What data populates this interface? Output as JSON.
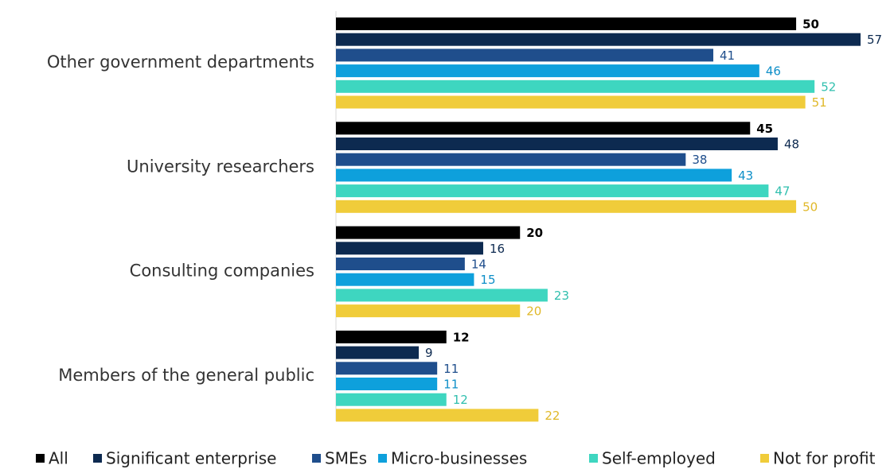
{
  "chart_data": {
    "type": "bar",
    "orientation": "horizontal",
    "categories": [
      "Other government departments",
      "University researchers",
      "Consulting companies",
      "Members of the general public"
    ],
    "series": [
      {
        "name": "All",
        "color": "#000000",
        "values": [
          50,
          45,
          20,
          12
        ]
      },
      {
        "name": "Significant enterprise",
        "color": "#0d2a50",
        "values": [
          57,
          48,
          16,
          9
        ]
      },
      {
        "name": "SMEs",
        "color": "#1f4e8c",
        "values": [
          41,
          38,
          14,
          11
        ]
      },
      {
        "name": "Micro-businesses",
        "color": "#0ea0dc",
        "values": [
          46,
          43,
          15,
          11
        ]
      },
      {
        "name": "Self-employed",
        "color": "#3ed6c0",
        "values": [
          52,
          47,
          23,
          12
        ]
      },
      {
        "name": "Not for profit",
        "color": "#f0cc3a",
        "values": [
          51,
          50,
          20,
          22
        ]
      }
    ],
    "legend": "bottom"
  }
}
